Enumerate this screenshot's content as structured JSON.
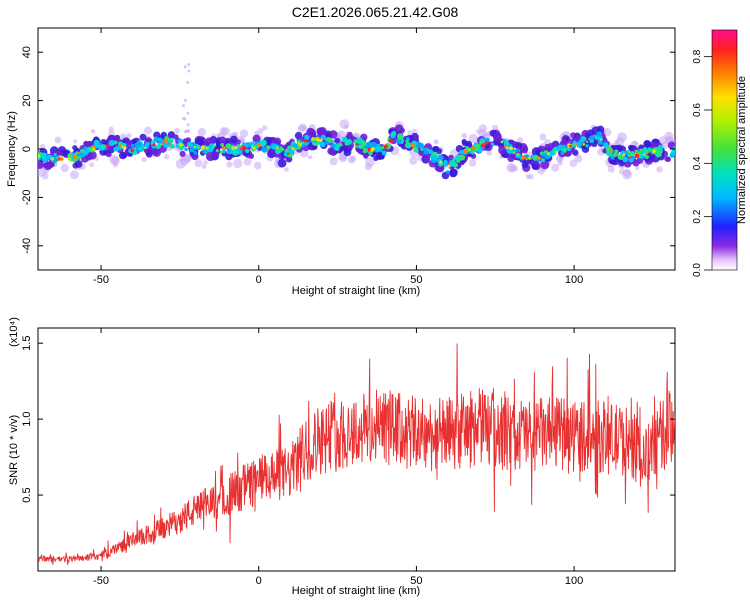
{
  "title": "C2E1.2026.065.21.42.G08",
  "chart_data": [
    {
      "type": "heatmap",
      "name": "spectrogram",
      "xlabel": "Height of straight line (km)",
      "ylabel": "Frequency (Hz)",
      "xlim": [
        -70,
        132
      ],
      "ylim": [
        -50,
        50
      ],
      "xticks": [
        -50,
        0,
        50,
        100
      ],
      "yticks": [
        -40,
        -20,
        0,
        20,
        40
      ],
      "centerline": {
        "x": [
          -70,
          -60,
          -50,
          -40,
          -30,
          -20,
          -10,
          -2,
          5,
          8,
          12,
          18,
          25,
          30,
          35,
          40,
          43,
          47,
          50,
          55,
          60,
          62,
          65,
          70,
          75,
          80,
          85,
          90,
          95,
          100,
          105,
          108,
          112,
          118,
          125,
          132
        ],
        "y": [
          -3,
          -4,
          2,
          0,
          3,
          0,
          0,
          1,
          1,
          -3,
          2,
          4,
          2,
          3,
          0,
          0,
          6,
          3,
          1,
          -2,
          -8,
          -6,
          -1,
          1,
          4,
          0,
          -4,
          -3,
          -1,
          2,
          3,
          5,
          -2,
          -3,
          -1,
          -1
        ]
      },
      "colorbar": {
        "label": "Normalized spectral amplitude",
        "range": [
          0.0,
          0.9
        ],
        "ticks": [
          0.0,
          0.2,
          0.4,
          0.6,
          0.8
        ]
      }
    },
    {
      "type": "line",
      "name": "snr",
      "xlabel": "Height of straight line (km)",
      "ylabel": "SNR (10 * v/v)",
      "y_multiplier": "(x10⁴)",
      "xlim": [
        -70,
        132
      ],
      "ylim": [
        0,
        1.6
      ],
      "xticks": [
        -50,
        0,
        50,
        100
      ],
      "yticks": [
        0.5,
        1.0,
        1.5
      ],
      "color": "#e83030",
      "trend": {
        "x": [
          -70,
          -60,
          -50,
          -40,
          -30,
          -20,
          -10,
          0,
          10,
          15,
          20,
          30,
          40,
          50,
          60,
          70,
          80,
          90,
          100,
          110,
          118,
          122,
          126,
          132
        ],
        "y": [
          0.08,
          0.08,
          0.1,
          0.2,
          0.28,
          0.4,
          0.5,
          0.6,
          0.65,
          0.8,
          0.88,
          0.92,
          0.95,
          0.9,
          0.9,
          0.95,
          0.9,
          0.9,
          0.9,
          0.88,
          0.85,
          0.72,
          0.85,
          0.98
        ]
      }
    }
  ]
}
